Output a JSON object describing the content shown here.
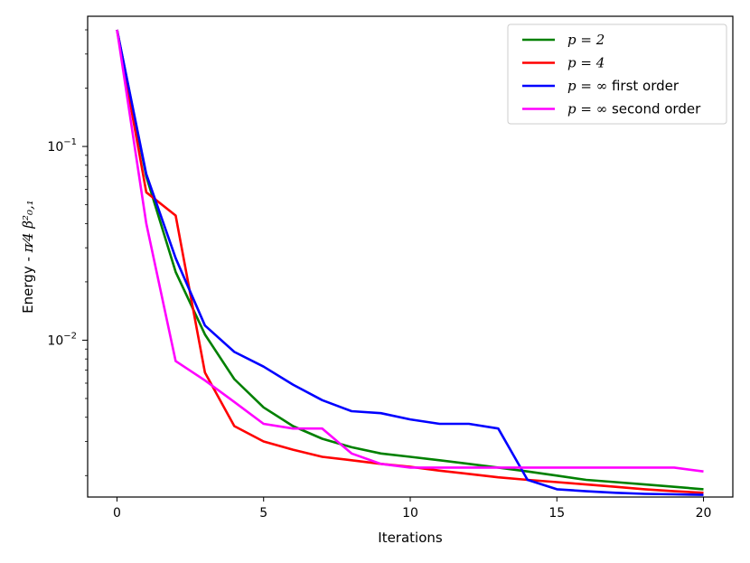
{
  "chart_data": {
    "type": "line",
    "xlabel": "Iterations",
    "ylabel": {
      "prefix": "Energy - ",
      "math": "π⁄4 β²₀,₁"
    },
    "y_scale": "log",
    "xlim": [
      -1,
      21
    ],
    "ylim": [
      0.00155,
      0.47
    ],
    "x_ticks": [
      {
        "value": 0,
        "label": "0"
      },
      {
        "value": 5,
        "label": "5"
      },
      {
        "value": 10,
        "label": "10"
      },
      {
        "value": 15,
        "label": "15"
      },
      {
        "value": 20,
        "label": "20"
      }
    ],
    "y_ticks": [
      {
        "value": 0.1,
        "label_base": "10",
        "label_exp": "−1"
      },
      {
        "value": 0.01,
        "label_base": "10",
        "label_exp": "−2"
      }
    ],
    "grid": false,
    "legend_position": "top-right",
    "x": [
      0,
      1,
      2,
      3,
      4,
      5,
      6,
      7,
      8,
      9,
      10,
      11,
      12,
      13,
      14,
      15,
      16,
      17,
      18,
      19,
      20
    ],
    "series": [
      {
        "name_math": "p = 2",
        "name_text": "",
        "color": "#008000",
        "values": [
          0.4,
          0.07,
          0.0225,
          0.0107,
          0.0063,
          0.0045,
          0.0036,
          0.0031,
          0.0028,
          0.0026,
          0.0025,
          0.0024,
          0.0023,
          0.0022,
          0.0021,
          0.002,
          0.0019,
          0.00185,
          0.0018,
          0.00175,
          0.0017
        ]
      },
      {
        "name_math": "p = 4",
        "name_text": "",
        "color": "#ff0000",
        "values": [
          0.4,
          0.058,
          0.044,
          0.0068,
          0.0036,
          0.003,
          0.00272,
          0.0025,
          0.0024,
          0.0023,
          0.00222,
          0.00212,
          0.00204,
          0.00196,
          0.0019,
          0.00185,
          0.0018,
          0.00175,
          0.0017,
          0.00166,
          0.00163
        ]
      },
      {
        "name_math": "p = ∞",
        "name_text": " first order",
        "color": "#0000ff",
        "values": [
          0.4,
          0.072,
          0.0265,
          0.0119,
          0.0087,
          0.0073,
          0.0059,
          0.0049,
          0.0043,
          0.0042,
          0.0039,
          0.0037,
          0.0037,
          0.0035,
          0.0019,
          0.0017,
          0.00166,
          0.00163,
          0.00161,
          0.0016,
          0.00159
        ]
      },
      {
        "name_math": "p = ∞",
        "name_text": " second order",
        "color": "#ff00ff",
        "values": [
          0.4,
          0.04,
          0.0078,
          0.0062,
          0.0048,
          0.0037,
          0.0035,
          0.0035,
          0.0026,
          0.0023,
          0.0022,
          0.0022,
          0.0022,
          0.0022,
          0.0022,
          0.0022,
          0.0022,
          0.0022,
          0.0022,
          0.0022,
          0.0021
        ]
      }
    ]
  }
}
